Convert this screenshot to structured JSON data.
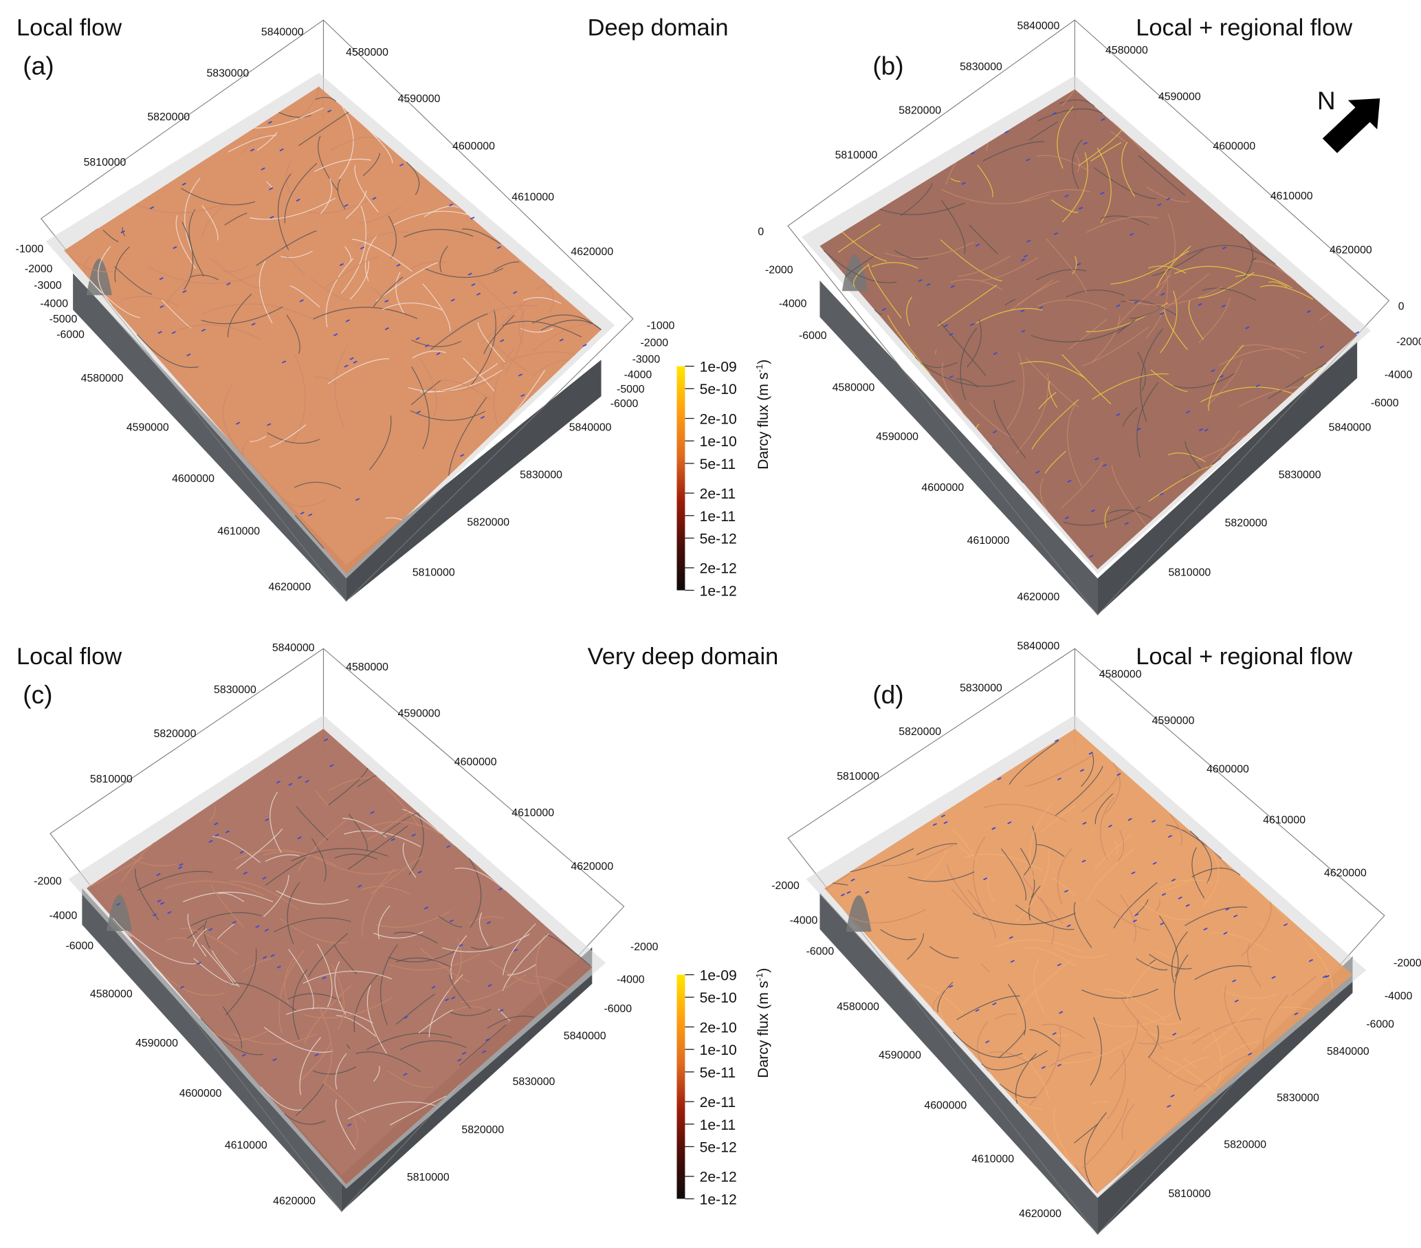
{
  "panels": [
    {
      "id": "a",
      "label": "(a)",
      "flow_title": "Local flow",
      "domain_title": "Deep domain",
      "y_top": [
        "5840000",
        "5830000",
        "5820000",
        "5810000"
      ],
      "x_top": [
        "4580000",
        "4590000",
        "4600000",
        "4610000",
        "4620000"
      ],
      "z_left": [
        "-1000",
        "-2000",
        "-3000",
        "-4000",
        "-5000",
        "-6000"
      ],
      "x_bottom": [
        "4580000",
        "4590000",
        "4600000",
        "4610000",
        "4620000"
      ],
      "y_bottom": [
        "5840000",
        "5830000",
        "5820000",
        "5810000"
      ],
      "z_right": [
        "-1000",
        "-2000",
        "-3000",
        "-4000",
        "-5000",
        "-6000"
      ]
    },
    {
      "id": "b",
      "label": "(b)",
      "flow_title": "Local + regional flow",
      "y_top": [
        "5840000",
        "5830000",
        "5820000",
        "5810000"
      ],
      "x_top": [
        "4580000",
        "4590000",
        "4600000",
        "4610000",
        "4620000"
      ],
      "z_left": [
        "0",
        "-2000",
        "-4000",
        "-6000"
      ],
      "x_bottom": [
        "4580000",
        "4590000",
        "4600000",
        "4610000",
        "4620000"
      ],
      "y_bottom": [
        "5840000",
        "5830000",
        "5820000",
        "5810000"
      ],
      "z_right": [
        "0",
        "-2000",
        "-4000",
        "-6000"
      ]
    },
    {
      "id": "c",
      "label": "(c)",
      "flow_title": "Local flow",
      "domain_title": "Very deep domain",
      "y_top": [
        "5840000",
        "5830000",
        "5820000",
        "5810000"
      ],
      "x_top": [
        "4580000",
        "4590000",
        "4600000",
        "4610000",
        "4620000"
      ],
      "z_left": [
        "-2000",
        "-4000",
        "-6000"
      ],
      "x_bottom": [
        "4580000",
        "4590000",
        "4600000",
        "4610000",
        "4620000"
      ],
      "y_bottom": [
        "5840000",
        "5830000",
        "5820000",
        "5810000"
      ],
      "z_right": [
        "-2000",
        "-4000",
        "-6000"
      ]
    },
    {
      "id": "d",
      "label": "(d)",
      "flow_title": "Local + regional flow",
      "y_top": [
        "5840000",
        "5830000",
        "5820000",
        "5810000"
      ],
      "x_top": [
        "4580000",
        "4590000",
        "4600000",
        "4610000",
        "4620000"
      ],
      "z_left": [
        "-2000",
        "-4000",
        "-6000"
      ],
      "x_bottom": [
        "4580000",
        "4590000",
        "4600000",
        "4610000",
        "4620000"
      ],
      "y_bottom": [
        "5840000",
        "5830000",
        "5820000",
        "5810000"
      ],
      "z_right": [
        "-2000",
        "-4000",
        "-6000"
      ]
    }
  ],
  "north_label": "N",
  "colorbar": {
    "title": "Darcy flux (m s",
    "title_sup": "-1",
    "title_end": ")",
    "scale": "log",
    "range": [
      1e-12,
      1e-09
    ],
    "ticks": [
      "1e-09",
      "5e-10",
      "2e-10",
      "1e-10",
      "5e-11",
      "2e-11",
      "1e-11",
      "5e-12",
      "2e-12",
      "1e-12"
    ],
    "colors": [
      "#ffe600",
      "#ff9f10",
      "#e06a20",
      "#9e1d0a",
      "#4a0e08",
      "#0d0a0a"
    ]
  },
  "colors": {
    "surface_a": "#d98a5c",
    "surface_b": "#9a6050",
    "surface_c": "#a86a5a",
    "surface_d": "#e89a60",
    "arrows": "#3a4bd0",
    "base": "#5a5e62"
  }
}
